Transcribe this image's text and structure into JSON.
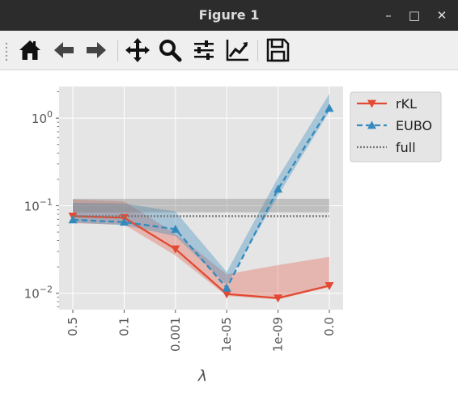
{
  "window": {
    "title": "Figure 1",
    "minimize_glyph": "–",
    "maximize_glyph": "□",
    "close_glyph": "✕"
  },
  "toolbar": {
    "buttons": [
      {
        "name": "home-button",
        "icon": "home-icon"
      },
      {
        "name": "back-button",
        "icon": "arrow-left-icon"
      },
      {
        "name": "forward-button",
        "icon": "arrow-right-icon"
      },
      {
        "name": "pan-button",
        "icon": "move-icon"
      },
      {
        "name": "zoom-button",
        "icon": "magnifier-icon"
      },
      {
        "name": "subplots-button",
        "icon": "sliders-icon"
      },
      {
        "name": "edit-axis-button",
        "icon": "line-chart-icon"
      },
      {
        "name": "save-button",
        "icon": "floppy-disk-icon"
      }
    ]
  },
  "chart_data": {
    "type": "line",
    "xlabel": "λ",
    "ylabel": "",
    "categories": [
      "0.5",
      "0.1",
      "0.001",
      "1e-05",
      "1e-09",
      "0.0"
    ],
    "yscale": "log",
    "ylim": [
      0.0065,
      2.3
    ],
    "yticks": [
      {
        "value": 0.01,
        "base": "10",
        "exp": "−2"
      },
      {
        "value": 0.1,
        "base": "10",
        "exp": "−1"
      },
      {
        "value": 1,
        "base": "10",
        "exp": "0"
      }
    ],
    "grid": true,
    "legend_position": "outside-right-top",
    "series": [
      {
        "name": "rKL",
        "style": "solid",
        "marker": "triangle-down",
        "color": "#E24A33",
        "values": [
          0.076,
          0.073,
          0.032,
          0.0098,
          0.0088,
          0.0122
        ],
        "band_upper": [
          0.118,
          0.112,
          0.048,
          0.0165,
          0.021,
          0.026
        ],
        "band_lower": [
          0.063,
          0.061,
          0.027,
          0.0093,
          0.0085,
          0.0118
        ]
      },
      {
        "name": "EUBO",
        "style": "dashed",
        "marker": "triangle-up",
        "color": "#348ABD",
        "values": [
          0.069,
          0.065,
          0.054,
          0.0115,
          0.155,
          1.3
        ],
        "band_upper": [
          0.108,
          0.106,
          0.086,
          0.0175,
          0.21,
          1.9
        ],
        "band_lower": [
          0.064,
          0.06,
          0.045,
          0.0125,
          0.13,
          1.2
        ]
      },
      {
        "name": "full",
        "style": "dotted",
        "marker": "none",
        "color": "#777777",
        "values": [
          0.076,
          0.076,
          0.076,
          0.076,
          0.076,
          0.076
        ],
        "band_upper": [
          0.12,
          0.12,
          0.12,
          0.12,
          0.12,
          0.12
        ],
        "band_lower": [
          0.084,
          0.084,
          0.084,
          0.084,
          0.084,
          0.084
        ]
      }
    ]
  }
}
